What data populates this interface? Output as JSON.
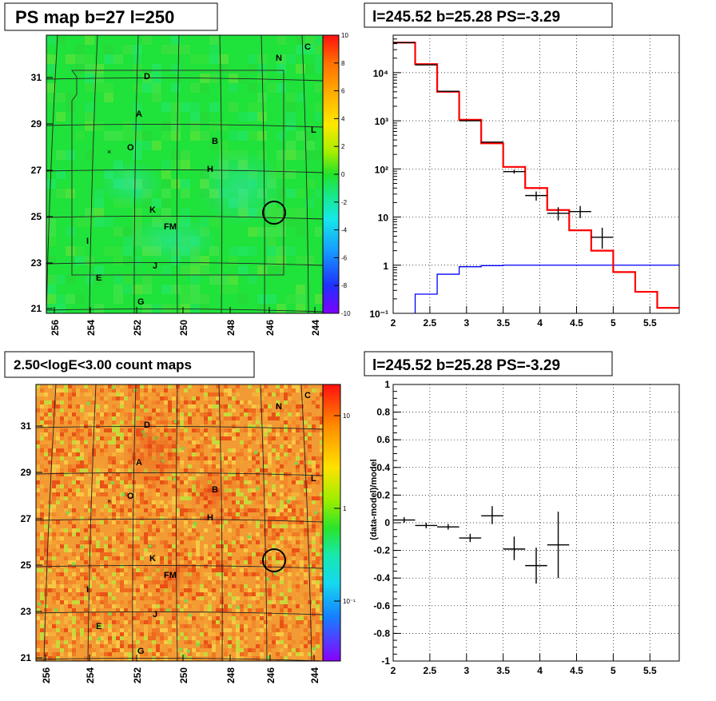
{
  "panels": {
    "ps_map": {
      "title": "PS map b=27 l=250",
      "x_ticks": [
        "256",
        "254",
        "252",
        "250",
        "248",
        "246",
        "244"
      ],
      "y_ticks": [
        "31",
        "29",
        "27",
        "25",
        "23",
        "21"
      ],
      "colorbar_ticks": [
        "10",
        "8",
        "6",
        "4",
        "2",
        "0",
        "-2",
        "-4",
        "-6",
        "-8",
        "-10"
      ],
      "labels": [
        "C",
        "N",
        "D",
        "A",
        "O",
        "L",
        "B",
        "H",
        "K",
        "FM",
        "I",
        "J",
        "E",
        "G"
      ]
    },
    "count_map": {
      "title": "2.50<logE<3.00 count maps",
      "x_ticks": [
        "256",
        "254",
        "252",
        "250",
        "248",
        "246",
        "244"
      ],
      "y_ticks": [
        "31",
        "29",
        "27",
        "25",
        "23",
        "21"
      ],
      "colorbar_ticks": [
        "10",
        "1",
        "10⁻¹"
      ],
      "labels": [
        "C",
        "N",
        "D",
        "A",
        "O",
        "L",
        "B",
        "H",
        "K",
        "FM",
        "I",
        "J",
        "E",
        "G"
      ]
    },
    "spectrum": {
      "title": "l=245.52 b=25.28 PS=-3.29"
    },
    "residual": {
      "title": "l=245.52 b=25.28 PS=-3.29",
      "ylabel": "(data-model)/model"
    }
  },
  "colors": {
    "model_line": "#ff0000",
    "background_line": "#0000ff",
    "data": "#000000"
  },
  "chart_data": [
    {
      "type": "line",
      "title": "l=245.52 b=25.28 PS=-3.29",
      "xlabel": "",
      "ylabel": "",
      "xlim": [
        2,
        5.9
      ],
      "ylim": [
        0.1,
        60000
      ],
      "ylog": true,
      "x_ticks": [
        "2",
        "2.5",
        "3",
        "3.5",
        "4",
        "4.5",
        "5",
        "5.5"
      ],
      "y_ticks": [
        "10⁻¹",
        "1",
        "10",
        "10²",
        "10³",
        "10⁴"
      ],
      "grid": true,
      "series": [
        {
          "role": "model",
          "color": "#ff0000",
          "edges": [
            2.0,
            2.3,
            2.6,
            2.9,
            3.2,
            3.5,
            3.8,
            4.1,
            4.4,
            4.7,
            5.0,
            5.3,
            5.6,
            5.9
          ],
          "values": [
            42000,
            15000,
            4000,
            1050,
            340,
            110,
            40,
            14,
            5.3,
            2.0,
            0.72,
            0.28,
            0.13
          ]
        },
        {
          "role": "background",
          "color": "#0000ff",
          "edges": [
            2.3,
            2.6,
            2.9,
            3.2,
            3.5,
            3.8,
            4.1,
            4.4,
            4.7,
            5.0,
            5.3,
            5.6,
            5.9
          ],
          "values": [
            0.25,
            0.65,
            0.93,
            0.98,
            1.0,
            1.0,
            1.0,
            1.0,
            1.0,
            1.0,
            1.0,
            1.0
          ]
        },
        {
          "role": "data",
          "color": "#000000",
          "x": [
            2.15,
            2.45,
            2.75,
            3.05,
            3.35,
            3.65,
            3.95,
            4.25,
            4.55,
            4.85
          ],
          "xerr": [
            0.15,
            0.15,
            0.15,
            0.15,
            0.15,
            0.15,
            0.15,
            0.15,
            0.15,
            0.15
          ],
          "y": [
            42000,
            14500,
            4100,
            1000,
            360,
            88,
            28,
            12,
            13,
            3.8
          ],
          "ylo": [
            41500,
            14300,
            4050,
            980,
            350,
            80,
            22,
            8.5,
            9.5,
            2.2
          ],
          "yhi": [
            42500,
            14700,
            4150,
            1020,
            370,
            96,
            34,
            16,
            17,
            6.0
          ]
        }
      ]
    },
    {
      "type": "scatter",
      "title": "l=245.52 b=25.28 PS=-3.29",
      "xlabel": "",
      "ylabel": "(data-model)/model",
      "xlim": [
        2,
        5.9
      ],
      "ylim": [
        -1,
        1
      ],
      "x_ticks": [
        "2",
        "2.5",
        "3",
        "3.5",
        "4",
        "4.5",
        "5",
        "5.5"
      ],
      "y_ticks": [
        "1",
        "0.8",
        "0.6",
        "0.4",
        "0.2",
        "0",
        "-0.2",
        "-0.4",
        "-0.6",
        "-0.8",
        "-1"
      ],
      "grid": true,
      "series": [
        {
          "x": [
            2.15,
            2.45,
            2.75,
            3.05,
            3.35,
            3.65,
            3.95,
            4.25
          ],
          "xerr": [
            0.15,
            0.15,
            0.15,
            0.15,
            0.15,
            0.15,
            0.15,
            0.15
          ],
          "y": [
            0.02,
            -0.02,
            -0.03,
            -0.11,
            0.05,
            -0.19,
            -0.31,
            -0.16
          ],
          "ylo": [
            0.0,
            -0.04,
            -0.05,
            -0.14,
            -0.01,
            -0.27,
            -0.44,
            -0.4
          ],
          "yhi": [
            0.04,
            0.0,
            -0.01,
            -0.08,
            0.12,
            -0.1,
            -0.18,
            0.08
          ]
        }
      ]
    }
  ]
}
